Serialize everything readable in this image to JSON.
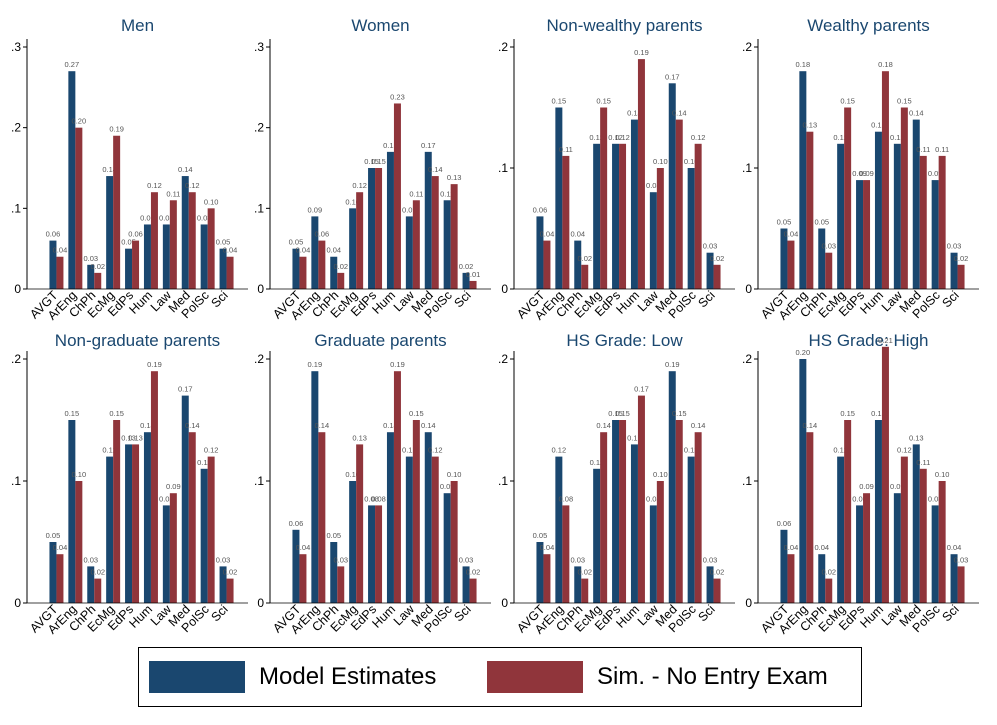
{
  "chart_data": [
    {
      "type": "bar",
      "title": "Men",
      "categories": [
        "AVGT",
        "ArEng",
        "ChPh",
        "EcMg",
        "EdPs",
        "Hum",
        "Law",
        "Med",
        "PolSc",
        "Sci"
      ],
      "ylim": [
        0,
        0.3
      ],
      "yticks": [
        0,
        0.1,
        0.2,
        0.3
      ],
      "ytick_labels": [
        "0",
        ".1",
        ".2",
        ".3"
      ],
      "series": [
        {
          "name": "Model Estimates",
          "values": [
            0.06,
            0.27,
            0.03,
            0.14,
            0.05,
            0.08,
            0.08,
            0.14,
            0.08,
            0.05
          ],
          "labels": [
            "0.06",
            "0.27",
            "0.03",
            "0.14",
            "0.05",
            "0.08",
            "0.08",
            "0.14",
            "0.08",
            "0.05"
          ]
        },
        {
          "name": "Sim. - No Entry Exam",
          "values": [
            0.04,
            0.2,
            0.02,
            0.19,
            0.06,
            0.12,
            0.11,
            0.12,
            0.1,
            0.04
          ],
          "labels": [
            "0.04",
            "0.20",
            "0.02",
            "0.19",
            "0.06",
            "0.12",
            "0.11",
            "0.12",
            "0.10",
            "0.04"
          ]
        }
      ]
    },
    {
      "type": "bar",
      "title": "Women",
      "categories": [
        "AVGT",
        "ArEng",
        "ChPh",
        "EcMg",
        "EdPs",
        "Hum",
        "Law",
        "Med",
        "PolSc",
        "Sci"
      ],
      "ylim": [
        0,
        0.3
      ],
      "yticks": [
        0,
        0.1,
        0.2,
        0.3
      ],
      "ytick_labels": [
        "0",
        ".1",
        ".2",
        ".3"
      ],
      "series": [
        {
          "name": "Model Estimates",
          "values": [
            0.05,
            0.09,
            0.04,
            0.1,
            0.15,
            0.17,
            0.09,
            0.17,
            0.11,
            0.02
          ],
          "labels": [
            "0.05",
            "0.09",
            "0.04",
            "0.10",
            "0.15",
            "0.17",
            "0.09",
            "0.17",
            "0.11",
            "0.02"
          ]
        },
        {
          "name": "Sim. - No Entry Exam",
          "values": [
            0.04,
            0.06,
            0.02,
            0.12,
            0.15,
            0.23,
            0.11,
            0.14,
            0.13,
            0.01
          ],
          "labels": [
            "0.04",
            "0.06",
            "0.02",
            "0.12",
            "0.15",
            "0.23",
            "0.11",
            "0.14",
            "0.13",
            "0.01"
          ]
        }
      ]
    },
    {
      "type": "bar",
      "title": "Non-wealthy parents",
      "categories": [
        "AVGT",
        "ArEng",
        "ChPh",
        "EcMg",
        "EdPs",
        "Hum",
        "Law",
        "Med",
        "PolSc",
        "Sci"
      ],
      "ylim": [
        0,
        0.2
      ],
      "yticks": [
        0,
        0.1,
        0.2
      ],
      "ytick_labels": [
        "0",
        ".1",
        ".2"
      ],
      "series": [
        {
          "name": "Model Estimates",
          "values": [
            0.06,
            0.15,
            0.04,
            0.12,
            0.12,
            0.14,
            0.08,
            0.17,
            0.1,
            0.03
          ],
          "labels": [
            "0.06",
            "0.15",
            "0.04",
            "0.12",
            "0.12",
            "0.14",
            "0.08",
            "0.17",
            "0.10",
            "0.03"
          ]
        },
        {
          "name": "Sim. - No Entry Exam",
          "values": [
            0.04,
            0.11,
            0.02,
            0.15,
            0.12,
            0.19,
            0.1,
            0.14,
            0.12,
            0.02
          ],
          "labels": [
            "0.04",
            "0.11",
            "0.02",
            "0.15",
            "0.12",
            "0.19",
            "0.10",
            "0.14",
            "0.12",
            "0.02"
          ]
        }
      ]
    },
    {
      "type": "bar",
      "title": "Wealthy parents",
      "categories": [
        "AVGT",
        "ArEng",
        "ChPh",
        "EcMg",
        "EdPs",
        "Hum",
        "Law",
        "Med",
        "PolSc",
        "Sci"
      ],
      "ylim": [
        0,
        0.2
      ],
      "yticks": [
        0,
        0.1,
        0.2
      ],
      "ytick_labels": [
        "0",
        ".1",
        ".2"
      ],
      "series": [
        {
          "name": "Model Estimates",
          "values": [
            0.05,
            0.18,
            0.05,
            0.12,
            0.09,
            0.13,
            0.12,
            0.14,
            0.09,
            0.03
          ],
          "labels": [
            "0.05",
            "0.18",
            "0.05",
            "0.12",
            "0.09",
            "0.13",
            "0.12",
            "0.14",
            "0.09",
            "0.03"
          ]
        },
        {
          "name": "Sim. - No Entry Exam",
          "values": [
            0.04,
            0.13,
            0.03,
            0.15,
            0.09,
            0.18,
            0.15,
            0.11,
            0.11,
            0.02
          ],
          "labels": [
            "0.04",
            "0.13",
            "0.03",
            "0.15",
            "0.09",
            "0.18",
            "0.15",
            "0.11",
            "0.11",
            "0.02"
          ]
        }
      ]
    },
    {
      "type": "bar",
      "title": "Non-graduate parents",
      "categories": [
        "AVGT",
        "ArEng",
        "ChPh",
        "EcMg",
        "EdPs",
        "Hum",
        "Law",
        "Med",
        "PolSc",
        "Sci"
      ],
      "ylim": [
        0,
        0.2
      ],
      "yticks": [
        0,
        0.1,
        0.2
      ],
      "ytick_labels": [
        "0",
        ".1",
        ".2"
      ],
      "series": [
        {
          "name": "Model Estimates",
          "values": [
            0.05,
            0.15,
            0.03,
            0.12,
            0.13,
            0.14,
            0.08,
            0.17,
            0.11,
            0.03
          ],
          "labels": [
            "0.05",
            "0.15",
            "0.03",
            "0.12",
            "0.13",
            "0.14",
            "0.08",
            "0.17",
            "0.11",
            "0.03"
          ]
        },
        {
          "name": "Sim. - No Entry Exam",
          "values": [
            0.04,
            0.1,
            0.02,
            0.15,
            0.13,
            0.19,
            0.09,
            0.14,
            0.12,
            0.02
          ],
          "labels": [
            "0.04",
            "0.10",
            "0.02",
            "0.15",
            "0.13",
            "0.19",
            "0.09",
            "0.14",
            "0.12",
            "0.02"
          ]
        }
      ]
    },
    {
      "type": "bar",
      "title": "Graduate parents",
      "categories": [
        "AVGT",
        "ArEng",
        "ChPh",
        "EcMg",
        "EdPs",
        "Hum",
        "Law",
        "Med",
        "PolSc",
        "Sci"
      ],
      "ylim": [
        0,
        0.2
      ],
      "yticks": [
        0,
        0.1,
        0.2
      ],
      "ytick_labels": [
        "0",
        ".1",
        ".2"
      ],
      "series": [
        {
          "name": "Model Estimates",
          "values": [
            0.06,
            0.19,
            0.05,
            0.1,
            0.08,
            0.14,
            0.12,
            0.14,
            0.09,
            0.03
          ],
          "labels": [
            "0.06",
            "0.19",
            "0.05",
            "0.10",
            "0.08",
            "0.14",
            "0.12",
            "0.14",
            "0.09",
            "0.03"
          ]
        },
        {
          "name": "Sim. - No Entry Exam",
          "values": [
            0.04,
            0.14,
            0.03,
            0.13,
            0.08,
            0.19,
            0.15,
            0.12,
            0.1,
            0.02
          ],
          "labels": [
            "0.04",
            "0.14",
            "0.03",
            "0.13",
            "0.08",
            "0.19",
            "0.15",
            "0.12",
            "0.10",
            "0.02"
          ]
        }
      ]
    },
    {
      "type": "bar",
      "title": "HS Grade: Low",
      "categories": [
        "AVGT",
        "ArEng",
        "ChPh",
        "EcMg",
        "EdPs",
        "Hum",
        "Law",
        "Med",
        "PolSc",
        "Sci"
      ],
      "ylim": [
        0,
        0.2
      ],
      "yticks": [
        0,
        0.1,
        0.2
      ],
      "ytick_labels": [
        "0",
        ".1",
        ".2"
      ],
      "series": [
        {
          "name": "Model Estimates",
          "values": [
            0.05,
            0.12,
            0.03,
            0.11,
            0.15,
            0.13,
            0.08,
            0.19,
            0.12,
            0.03
          ],
          "labels": [
            "0.05",
            "0.12",
            "0.03",
            "0.11",
            "0.15",
            "0.13",
            "0.08",
            "0.19",
            "0.12",
            "0.03"
          ]
        },
        {
          "name": "Sim. - No Entry Exam",
          "values": [
            0.04,
            0.08,
            0.02,
            0.14,
            0.15,
            0.17,
            0.1,
            0.15,
            0.14,
            0.02
          ],
          "labels": [
            "0.04",
            "0.08",
            "0.02",
            "0.14",
            "0.15",
            "0.17",
            "0.10",
            "0.15",
            "0.14",
            "0.02"
          ]
        }
      ]
    },
    {
      "type": "bar",
      "title": "HS Grade: High",
      "categories": [
        "AVGT",
        "ArEng",
        "ChPh",
        "EcMg",
        "EdPs",
        "Hum",
        "Law",
        "Med",
        "PolSc",
        "Sci"
      ],
      "ylim": [
        0,
        0.2
      ],
      "yticks": [
        0,
        0.1,
        0.2
      ],
      "ytick_labels": [
        "0",
        ".1",
        ".2"
      ],
      "series": [
        {
          "name": "Model Estimates",
          "values": [
            0.06,
            0.2,
            0.04,
            0.12,
            0.08,
            0.15,
            0.09,
            0.13,
            0.08,
            0.04
          ],
          "labels": [
            "0.06",
            "0.20",
            "0.04",
            "0.12",
            "0.08",
            "0.15",
            "0.09",
            "0.13",
            "0.08",
            "0.04"
          ]
        },
        {
          "name": "Sim. - No Entry Exam",
          "values": [
            0.04,
            0.14,
            0.02,
            0.15,
            0.09,
            0.21,
            0.12,
            0.11,
            0.1,
            0.03
          ],
          "labels": [
            "0.04",
            "0.14",
            "0.02",
            "0.15",
            "0.09",
            "0.21",
            "0.12",
            "0.11",
            "0.10",
            "0.03"
          ]
        }
      ]
    }
  ],
  "legend": {
    "placement": "bottom-center",
    "items": [
      {
        "label": "Model Estimates",
        "color": "#1a476f"
      },
      {
        "label": "Sim. - No Entry Exam",
        "color": "#90353b"
      }
    ]
  },
  "colors": {
    "title": "#1a476f",
    "model": "#1a476f",
    "sim": "#90353b"
  }
}
